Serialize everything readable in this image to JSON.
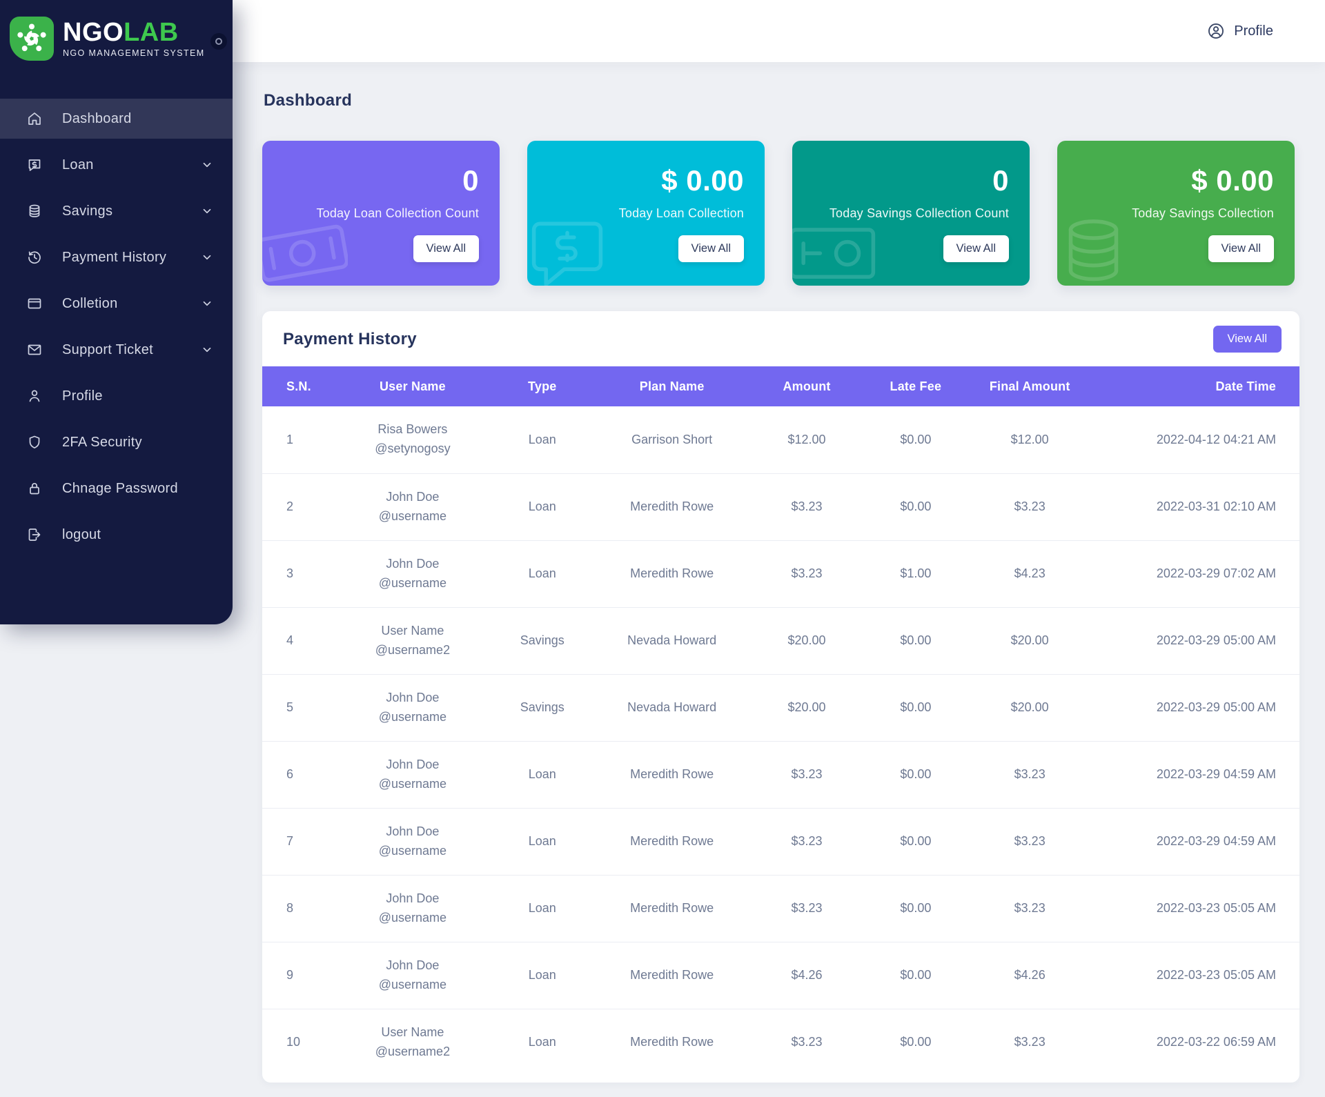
{
  "brand": {
    "name_primary": "NGO",
    "name_secondary": "LAB",
    "tagline": "NGO MANAGEMENT SYSTEM"
  },
  "topbar": {
    "profile_label": "Profile"
  },
  "sidebar": {
    "items": [
      {
        "label": "Dashboard",
        "icon": "home-icon",
        "active": true,
        "expandable": false
      },
      {
        "label": "Loan",
        "icon": "loan-icon",
        "active": false,
        "expandable": true
      },
      {
        "label": "Savings",
        "icon": "savings-icon",
        "active": false,
        "expandable": true
      },
      {
        "label": "Payment History",
        "icon": "payment-history-icon",
        "active": false,
        "expandable": true
      },
      {
        "label": "Colletion",
        "icon": "collection-icon",
        "active": false,
        "expandable": true
      },
      {
        "label": "Support Ticket",
        "icon": "support-ticket-icon",
        "active": false,
        "expandable": true
      },
      {
        "label": "Profile",
        "icon": "profile-icon",
        "active": false,
        "expandable": false
      },
      {
        "label": "2FA Security",
        "icon": "shield-icon",
        "active": false,
        "expandable": false
      },
      {
        "label": "Chnage Password",
        "icon": "lock-icon",
        "active": false,
        "expandable": false
      },
      {
        "label": "logout",
        "icon": "logout-icon",
        "active": false,
        "expandable": false
      }
    ]
  },
  "page": {
    "title": "Dashboard"
  },
  "stat_cards": [
    {
      "value": "0",
      "label": "Today Loan Collection Count",
      "button_label": "View All",
      "color": "#7767f1",
      "watermark_icon": "money-bill-icon"
    },
    {
      "value": "$ 0.00",
      "label": "Today Loan Collection",
      "button_label": "View All",
      "color": "#00bdd9",
      "watermark_icon": "money-chat-icon"
    },
    {
      "value": "0",
      "label": "Today Savings Collection Count",
      "button_label": "View All",
      "color": "#02998a",
      "watermark_icon": "money-note-icon"
    },
    {
      "value": "$ 0.00",
      "label": "Today Savings Collection",
      "button_label": "View All",
      "color": "#47ad4d",
      "watermark_icon": "coins-icon"
    }
  ],
  "colors": {
    "sidebar_bg": "#141a40",
    "accent_purple": "#7367f0",
    "logo_green": "#3bb24a",
    "page_bg": "#eef0f4"
  },
  "payment_history": {
    "title": "Payment History",
    "view_all_label": "View All",
    "columns": [
      "S.N.",
      "User Name",
      "Type",
      "Plan Name",
      "Amount",
      "Late Fee",
      "Final Amount",
      "Date Time"
    ],
    "rows": [
      {
        "sn": "1",
        "user_name": "Risa Bowers",
        "user_handle": "@setynogosy",
        "type": "Loan",
        "plan_name": "Garrison Short",
        "amount": "$12.00",
        "late_fee": "$0.00",
        "final_amount": "$12.00",
        "date_time": "2022-04-12 04:21 AM"
      },
      {
        "sn": "2",
        "user_name": "John Doe",
        "user_handle": "@username",
        "type": "Loan",
        "plan_name": "Meredith Rowe",
        "amount": "$3.23",
        "late_fee": "$0.00",
        "final_amount": "$3.23",
        "date_time": "2022-03-31 02:10 AM"
      },
      {
        "sn": "3",
        "user_name": "John Doe",
        "user_handle": "@username",
        "type": "Loan",
        "plan_name": "Meredith Rowe",
        "amount": "$3.23",
        "late_fee": "$1.00",
        "final_amount": "$4.23",
        "date_time": "2022-03-29 07:02 AM"
      },
      {
        "sn": "4",
        "user_name": "User Name",
        "user_handle": "@username2",
        "type": "Savings",
        "plan_name": "Nevada Howard",
        "amount": "$20.00",
        "late_fee": "$0.00",
        "final_amount": "$20.00",
        "date_time": "2022-03-29 05:00 AM"
      },
      {
        "sn": "5",
        "user_name": "John Doe",
        "user_handle": "@username",
        "type": "Savings",
        "plan_name": "Nevada Howard",
        "amount": "$20.00",
        "late_fee": "$0.00",
        "final_amount": "$20.00",
        "date_time": "2022-03-29 05:00 AM"
      },
      {
        "sn": "6",
        "user_name": "John Doe",
        "user_handle": "@username",
        "type": "Loan",
        "plan_name": "Meredith Rowe",
        "amount": "$3.23",
        "late_fee": "$0.00",
        "final_amount": "$3.23",
        "date_time": "2022-03-29 04:59 AM"
      },
      {
        "sn": "7",
        "user_name": "John Doe",
        "user_handle": "@username",
        "type": "Loan",
        "plan_name": "Meredith Rowe",
        "amount": "$3.23",
        "late_fee": "$0.00",
        "final_amount": "$3.23",
        "date_time": "2022-03-29 04:59 AM"
      },
      {
        "sn": "8",
        "user_name": "John Doe",
        "user_handle": "@username",
        "type": "Loan",
        "plan_name": "Meredith Rowe",
        "amount": "$3.23",
        "late_fee": "$0.00",
        "final_amount": "$3.23",
        "date_time": "2022-03-23 05:05 AM"
      },
      {
        "sn": "9",
        "user_name": "John Doe",
        "user_handle": "@username",
        "type": "Loan",
        "plan_name": "Meredith Rowe",
        "amount": "$4.26",
        "late_fee": "$0.00",
        "final_amount": "$4.26",
        "date_time": "2022-03-23 05:05 AM"
      },
      {
        "sn": "10",
        "user_name": "User Name",
        "user_handle": "@username2",
        "type": "Loan",
        "plan_name": "Meredith Rowe",
        "amount": "$3.23",
        "late_fee": "$0.00",
        "final_amount": "$3.23",
        "date_time": "2022-03-22 06:59 AM"
      }
    ]
  }
}
